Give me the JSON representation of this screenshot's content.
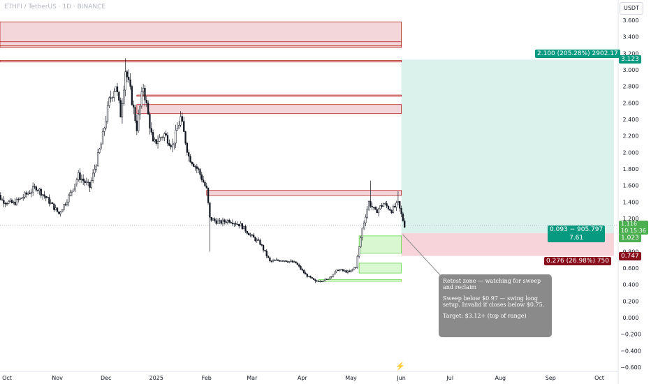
{
  "legend": {
    "symbol": "ETHFI / TetherUS · 1D · BINANCE"
  },
  "currency": "USDT",
  "colors": {
    "up": "#26a69a",
    "down": "#131722",
    "candle": "#131722",
    "resistance_fill": "#f2d6da",
    "resistance_line": "#b71c1c",
    "profit_fill": "#d4efe9",
    "loss_fill": "#f4cdd2",
    "support_fill": "#d9f7d0",
    "support_line": "#66d94a",
    "profit_tag": "#089981",
    "loss_tag": "#880e1b",
    "price_tag": "#4caf50",
    "axis_text": "#131722"
  },
  "chart_data": {
    "type": "candlestick",
    "y_axis": {
      "min": -0.6,
      "max": 3.6,
      "step": 0.2,
      "ticks": [
        "3.600",
        "3.400",
        "3.200",
        "3.000",
        "2.800",
        "2.600",
        "2.400",
        "2.200",
        "2.000",
        "1.800",
        "1.600",
        "1.400",
        "1.200",
        "1.000",
        "0.800",
        "0.600",
        "0.400",
        "0.200",
        "0.000",
        "−0.200",
        "−0.400",
        "−0.600"
      ]
    },
    "x_axis": {
      "ticks": [
        "Oct",
        "Nov",
        "Dec",
        "2025",
        "Feb",
        "Mar",
        "Apr",
        "May",
        "Jun",
        "Jul",
        "Aug",
        "Sep",
        "Oct"
      ],
      "tick_dates": [
        "2024-10-01",
        "2024-11-01",
        "2024-12-01",
        "2025-01-01",
        "2025-02-01",
        "2025-03-01",
        "2025-04-01",
        "2025-05-01",
        "2025-06-01",
        "2025-07-01",
        "2025-08-01",
        "2025-09-01",
        "2025-10-01"
      ]
    },
    "price_path": [
      {
        "date": "2024-09-22",
        "price": 1.58
      },
      {
        "date": "2024-09-28",
        "price": 1.42
      },
      {
        "date": "2024-10-05",
        "price": 1.38
      },
      {
        "date": "2024-10-12",
        "price": 1.48
      },
      {
        "date": "2024-10-19",
        "price": 1.58
      },
      {
        "date": "2024-10-26",
        "price": 1.43
      },
      {
        "date": "2024-11-02",
        "price": 1.26
      },
      {
        "date": "2024-11-09",
        "price": 1.5
      },
      {
        "date": "2024-11-14",
        "price": 1.72
      },
      {
        "date": "2024-11-21",
        "price": 1.58
      },
      {
        "date": "2024-11-28",
        "price": 2.1
      },
      {
        "date": "2024-12-03",
        "price": 2.62
      },
      {
        "date": "2024-12-07",
        "price": 2.82
      },
      {
        "date": "2024-12-10",
        "price": 2.46
      },
      {
        "date": "2024-12-13",
        "price": 3.0
      },
      {
        "date": "2024-12-16",
        "price": 2.74
      },
      {
        "date": "2024-12-20",
        "price": 2.3
      },
      {
        "date": "2024-12-24",
        "price": 2.8
      },
      {
        "date": "2024-12-30",
        "price": 2.1
      },
      {
        "date": "2025-01-06",
        "price": 2.22
      },
      {
        "date": "2025-01-11",
        "price": 2.08
      },
      {
        "date": "2025-01-16",
        "price": 2.42
      },
      {
        "date": "2025-01-21",
        "price": 1.95
      },
      {
        "date": "2025-01-27",
        "price": 1.78
      },
      {
        "date": "2025-02-01",
        "price": 1.55
      },
      {
        "date": "2025-02-03",
        "price": 1.2
      },
      {
        "date": "2025-02-09",
        "price": 1.15
      },
      {
        "date": "2025-02-15",
        "price": 1.18
      },
      {
        "date": "2025-02-22",
        "price": 1.12
      },
      {
        "date": "2025-03-01",
        "price": 0.98
      },
      {
        "date": "2025-03-06",
        "price": 0.9
      },
      {
        "date": "2025-03-12",
        "price": 0.68
      },
      {
        "date": "2025-03-20",
        "price": 0.7
      },
      {
        "date": "2025-03-28",
        "price": 0.66
      },
      {
        "date": "2025-04-03",
        "price": 0.52
      },
      {
        "date": "2025-04-09",
        "price": 0.44
      },
      {
        "date": "2025-04-16",
        "price": 0.46
      },
      {
        "date": "2025-04-23",
        "price": 0.58
      },
      {
        "date": "2025-04-30",
        "price": 0.55
      },
      {
        "date": "2025-05-04",
        "price": 0.62
      },
      {
        "date": "2025-05-08",
        "price": 1.08
      },
      {
        "date": "2025-05-12",
        "price": 1.4
      },
      {
        "date": "2025-05-16",
        "price": 1.28
      },
      {
        "date": "2025-05-21",
        "price": 1.38
      },
      {
        "date": "2025-05-26",
        "price": 1.3
      },
      {
        "date": "2025-05-30",
        "price": 1.38
      },
      {
        "date": "2025-06-02",
        "price": 1.18
      },
      {
        "date": "2025-06-03",
        "price": 1.116
      }
    ],
    "spike_highs": [
      {
        "date": "2024-12-13",
        "high": 3.14
      },
      {
        "date": "2025-01-16",
        "high": 2.5
      },
      {
        "date": "2025-05-13",
        "high": 1.66
      },
      {
        "date": "2025-05-30",
        "high": 1.53
      }
    ],
    "spike_lows": [
      {
        "date": "2025-02-03",
        "low": 0.8
      },
      {
        "date": "2025-04-09",
        "low": 0.42
      }
    ],
    "resistance_zones": [
      {
        "y_top": 3.58,
        "y_bottom": 3.27,
        "start": "2024-09-22",
        "end": "2025-06-01"
      },
      {
        "y_top": 3.34,
        "y_bottom": 3.29,
        "start": "2024-09-22",
        "end": "2025-06-01"
      },
      {
        "y_top": 3.115,
        "y_bottom": 3.095,
        "start": "2024-09-22",
        "end": "2025-06-01"
      },
      {
        "y_top": 2.695,
        "y_bottom": 2.68,
        "start": "2024-12-20",
        "end": "2025-06-01"
      },
      {
        "y_top": 2.58,
        "y_bottom": 2.47,
        "start": "2024-12-20",
        "end": "2025-06-01"
      },
      {
        "y_top": 1.54,
        "y_bottom": 1.48,
        "start": "2025-02-01",
        "end": "2025-06-01"
      }
    ],
    "support_zones": [
      {
        "y_top": 0.99,
        "y_bottom": 0.78,
        "start": "2025-05-06",
        "end": "2025-06-01"
      },
      {
        "y_top": 0.66,
        "y_bottom": 0.54,
        "start": "2025-05-06",
        "end": "2025-06-01"
      },
      {
        "y_top": 0.46,
        "y_bottom": 0.44,
        "start": "2025-04-11",
        "end": "2025-06-01"
      }
    ],
    "position": {
      "start": "2025-06-01",
      "end": "2025-10-10",
      "entry": 1.023,
      "target": 3.123,
      "stop": 0.747,
      "profit_label": "2.100 (205.28%) 2902.17",
      "loss_label": "0.276 (26.98%) 750",
      "entry_label": "0.093 − 905.797",
      "entry_sub": "7.61"
    },
    "current_price": 1.116,
    "countdown": "10:15:36"
  },
  "price_tags": {
    "target": "3.123",
    "current": "1.116",
    "entry": "1.023",
    "stop": "0.747"
  },
  "note": {
    "p1": "Retest zone — watching for sweep and reclaim",
    "p2": "Sweep below $0.97 — swing long setup. Invalid if closes below $0.75.",
    "p3": "Target: $3.12+ (top of range)"
  }
}
